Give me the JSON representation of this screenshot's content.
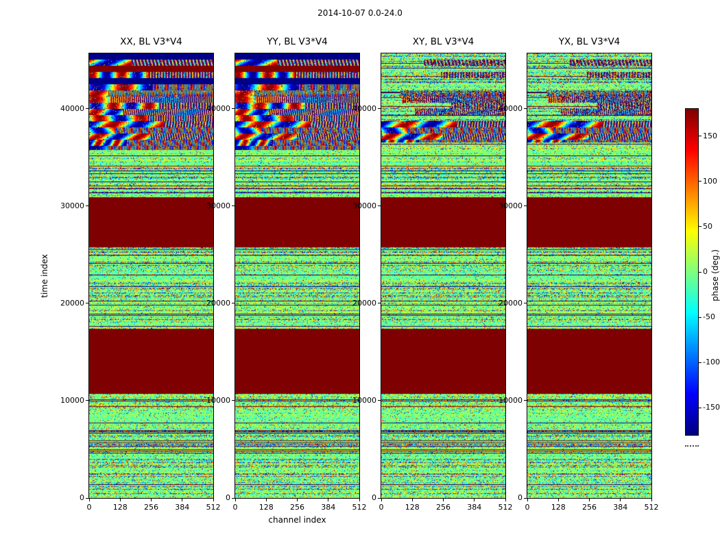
{
  "figure": {
    "suptitle": "2014-10-07 0.0-24.0"
  },
  "chart_data": {
    "type": "heatmap",
    "title": "2014-10-07 0.0-24.0",
    "xlabel": "channel index",
    "ylabel": "time index",
    "panels": [
      {
        "title": "XX, BL V3*V4",
        "polarization": "XX",
        "coherent_fringes_top": true
      },
      {
        "title": "YY, BL V3*V4",
        "polarization": "YY",
        "coherent_fringes_top": true
      },
      {
        "title": "XY, BL V3*V4",
        "polarization": "XY",
        "coherent_fringes_top": false
      },
      {
        "title": "YX, BL V3*V4",
        "polarization": "YX",
        "coherent_fringes_top": false
      }
    ],
    "x_ticks": [
      0,
      128,
      256,
      384,
      512
    ],
    "y_ticks": [
      0,
      10000,
      20000,
      30000,
      40000
    ],
    "x_range": [
      0,
      512
    ],
    "y_range": [
      0,
      45700
    ],
    "colorbar": {
      "label": "phase (deg.)",
      "ticks": [
        150,
        100,
        50,
        0,
        -50,
        -100,
        -150
      ],
      "range": [
        -180,
        180
      ],
      "colormap": "jet"
    },
    "features": {
      "saturated_bands_time": [
        [
          10700,
          17400
        ],
        [
          25800,
          30900
        ]
      ],
      "coherent_region_time": [
        35800,
        45700
      ],
      "xy_coherent_band_time": [
        36600,
        38800
      ],
      "background": "speckled visibility phase noise near 0 deg with horizontal row banding; two fully saturated (+180 deg) flagged time bands; coherent fringe/rainbow phase structure at high time indices (strong in XX and YY, partial in XY and YX)"
    }
  }
}
